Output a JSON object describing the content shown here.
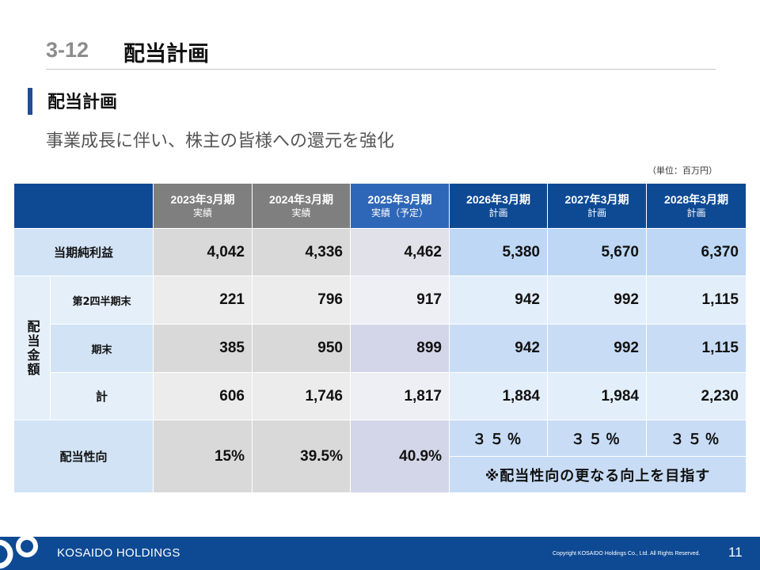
{
  "header": {
    "section_number": "3-12",
    "section_title": "配当計画"
  },
  "subheading": "配当計画",
  "lead_text": "事業成長に伴い、株主の皆様への還元を強化",
  "unit_note": "（単位：百万円）",
  "table": {
    "columns": [
      {
        "year": "2023年3月期",
        "kind": "実績"
      },
      {
        "year": "2024年3月期",
        "kind": "実績"
      },
      {
        "year": "2025年3月期",
        "kind": "実績（予定）"
      },
      {
        "year": "2026年3月期",
        "kind": "計画"
      },
      {
        "year": "2027年3月期",
        "kind": "計画"
      },
      {
        "year": "2028年3月期",
        "kind": "計画"
      }
    ],
    "net_income": {
      "label": "当期純利益",
      "values": [
        "4,042",
        "4,336",
        "4,462",
        "5,380",
        "5,670",
        "6,370"
      ]
    },
    "dividend_group_label": "配当金額",
    "interim": {
      "label": "第2四半期末",
      "values": [
        "221",
        "796",
        "917",
        "942",
        "992",
        "1,115"
      ]
    },
    "year_end": {
      "label": "期末",
      "values": [
        "385",
        "950",
        "899",
        "942",
        "992",
        "1,115"
      ]
    },
    "total": {
      "label": "計",
      "values": [
        "606",
        "1,746",
        "1,817",
        "1,884",
        "1,984",
        "2,230"
      ]
    },
    "payout": {
      "label": "配当性向",
      "values": [
        "15%",
        "39.5%",
        "40.9%",
        "３５％",
        "３５％",
        "３５％"
      ],
      "note": "※配当性向の更なる向上を目指す"
    }
  },
  "footer": {
    "brand": "KOSAIDO HOLDINGS",
    "copyright": "Copyright  KOSAIDO Holdings Co., Ltd. All Rights Reserved.",
    "page_number": "11"
  }
}
